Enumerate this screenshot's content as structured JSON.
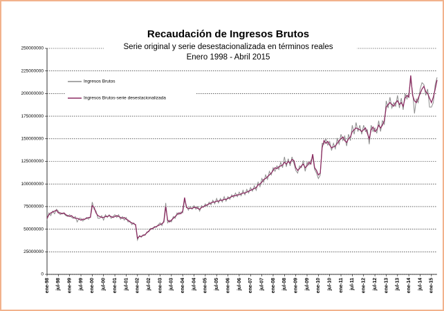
{
  "chart_data": {
    "type": "line",
    "title": "Recaudación de Ingresos Brutos",
    "subtitle": [
      "Serie original y serie desestacionalizada en términos reales",
      "Enero 1998 - Abril 2015"
    ],
    "categories": [
      "ene-98",
      null,
      null,
      null,
      null,
      null,
      "jul-98",
      null,
      null,
      null,
      null,
      null,
      "ene-99",
      null,
      null,
      null,
      null,
      null,
      "jul-99",
      null,
      null,
      null,
      null,
      null,
      "ene-00",
      null,
      null,
      null,
      null,
      null,
      "jul-00",
      null,
      null,
      null,
      null,
      null,
      "ene-01",
      null,
      null,
      null,
      null,
      null,
      "jul-01",
      null,
      null,
      null,
      null,
      null,
      "ene-02",
      null,
      null,
      null,
      null,
      null,
      "jul-02",
      null,
      null,
      null,
      null,
      null,
      "ene-03",
      null,
      null,
      null,
      null,
      null,
      "jul-03",
      null,
      null,
      null,
      null,
      null,
      "ene-04",
      null,
      null,
      null,
      null,
      null,
      "jul-04",
      null,
      null,
      null,
      null,
      null,
      "ene-05",
      null,
      null,
      null,
      null,
      null,
      "jul-05",
      null,
      null,
      null,
      null,
      null,
      "ene-06",
      null,
      null,
      null,
      null,
      null,
      "jul-06",
      null,
      null,
      null,
      null,
      null,
      "ene-07",
      null,
      null,
      null,
      null,
      null,
      "jul-07",
      null,
      null,
      null,
      null,
      null,
      "ene-08",
      null,
      null,
      null,
      null,
      null,
      "jul-08",
      null,
      null,
      null,
      null,
      null,
      "ene-09",
      null,
      null,
      null,
      null,
      null,
      "jul-09",
      null,
      null,
      null,
      null,
      null,
      "ene-10",
      null,
      null,
      null,
      null,
      null,
      "jul-10",
      null,
      null,
      null,
      null,
      null,
      "ene-11",
      null,
      null,
      null,
      null,
      null,
      "jul-11",
      null,
      null,
      null,
      null,
      null,
      "ene-12",
      null,
      null,
      null,
      null,
      null,
      "jul-12",
      null,
      null,
      null,
      null,
      null,
      "ene-13",
      null,
      null,
      null,
      null,
      null,
      "jul-13",
      null,
      null,
      null,
      null,
      null,
      "ene-14",
      null,
      null,
      null,
      null,
      null,
      "jul-14",
      null,
      null,
      null,
      null,
      null,
      "ene-15",
      null,
      null,
      null
    ],
    "series": [
      {
        "name": "Ingresos Brutos",
        "color": "#8c8c8c",
        "values": [
          60000000.0,
          68000000.0,
          65000000.0,
          70000000.0,
          67000000.0,
          72000000.0,
          70000000.0,
          66000000.0,
          68000000.0,
          67000000.0,
          65000000.0,
          64000000.0,
          66000000.0,
          63000000.0,
          62000000.0,
          64000000.0,
          58000000.0,
          62000000.0,
          62000000.0,
          59000000.0,
          61000000.0,
          63000000.0,
          61000000.0,
          64000000.0,
          80000000.0,
          72000000.0,
          70000000.0,
          62000000.0,
          62000000.0,
          65000000.0,
          60000000.0,
          66000000.0,
          63000000.0,
          66000000.0,
          62000000.0,
          64000000.0,
          66000000.0,
          63000000.0,
          66000000.0,
          61000000.0,
          64000000.0,
          60000000.0,
          63000000.0,
          58000000.0,
          59000000.0,
          55000000.0,
          57000000.0,
          54000000.0,
          38000000.0,
          43000000.0,
          41000000.0,
          44000000.0,
          43000000.0,
          47000000.0,
          47000000.0,
          51000000.0,
          50000000.0,
          53000000.0,
          52000000.0,
          55000000.0,
          57000000.0,
          54000000.0,
          60000000.0,
          79000000.0,
          57000000.0,
          60000000.0,
          58000000.0,
          64000000.0,
          62000000.0,
          68000000.0,
          66000000.0,
          69000000.0,
          68000000.0,
          82000000.0,
          76000000.0,
          71000000.0,
          75000000.0,
          72000000.0,
          76000000.0,
          72000000.0,
          75000000.0,
          70000000.0,
          76000000.0,
          74000000.0,
          78000000.0,
          75000000.0,
          80000000.0,
          77000000.0,
          82000000.0,
          78000000.0,
          84000000.0,
          79000000.0,
          84000000.0,
          80000000.0,
          86000000.0,
          81000000.0,
          86000000.0,
          83000000.0,
          88000000.0,
          85000000.0,
          90000000.0,
          86000000.0,
          91000000.0,
          87000000.0,
          93000000.0,
          88000000.0,
          94000000.0,
          90000000.0,
          96000000.0,
          92000000.0,
          98000000.0,
          93000000.0,
          102000000.0,
          97000000.0,
          106000000.0,
          102000000.0,
          110000000.0,
          105000000.0,
          114000000.0,
          110000000.0,
          118000000.0,
          114000000.0,
          120000000.0,
          116000000.0,
          124000000.0,
          118000000.0,
          130000000.0,
          119000000.0,
          128000000.0,
          120000000.0,
          130000000.0,
          123000000.0,
          115000000.0,
          112000000.0,
          120000000.0,
          118000000.0,
          126000000.0,
          114000000.0,
          124000000.0,
          121000000.0,
          126000000.0,
          130000000.0,
          116000000.0,
          112000000.0,
          106000000.0,
          110000000.0,
          145000000.0,
          144000000.0,
          150000000.0,
          143000000.0,
          147000000.0,
          137000000.0,
          145000000.0,
          139000000.0,
          150000000.0,
          144000000.0,
          155000000.0,
          148000000.0,
          153000000.0,
          142000000.0,
          155000000.0,
          148000000.0,
          165000000.0,
          155000000.0,
          168000000.0,
          158000000.0,
          165000000.0,
          155000000.0,
          165000000.0,
          158000000.0,
          160000000.0,
          144000000.0,
          165000000.0,
          158000000.0,
          162000000.0,
          156000000.0,
          170000000.0,
          158000000.0,
          170000000.0,
          166000000.0,
          192000000.0,
          184000000.0,
          196000000.0,
          184000000.0,
          190000000.0,
          186000000.0,
          198000000.0,
          184000000.0,
          195000000.0,
          182000000.0,
          200000000.0,
          194000000.0,
          200000000.0,
          215000000.0,
          202000000.0,
          178000000.0,
          194000000.0,
          190000000.0,
          205000000.0,
          212000000.0,
          210000000.0,
          198000000.0,
          205000000.0,
          185000000.0,
          185000000.0,
          190000000.0,
          210000000.0,
          218000000.0
        ]
      },
      {
        "name": "Ingresos Brutos-serie  desestacionalizada",
        "color": "#8b2c62",
        "values": [
          62000000.0,
          66000000.0,
          68000000.0,
          69000000.0,
          70000000.0,
          71000000.0,
          68000000.0,
          68000000.0,
          67000000.0,
          68000000.0,
          66000000.0,
          65000000.0,
          64000000.0,
          65000000.0,
          63000000.0,
          62000000.0,
          62000000.0,
          61000000.0,
          60000000.0,
          61000000.0,
          61000000.0,
          62000000.0,
          63000000.0,
          63000000.0,
          76000000.0,
          74000000.0,
          68000000.0,
          65000000.0,
          64000000.0,
          63000000.0,
          63000000.0,
          64000000.0,
          64000000.0,
          65000000.0,
          64000000.0,
          63000000.0,
          64000000.0,
          65000000.0,
          64000000.0,
          63000000.0,
          62000000.0,
          63000000.0,
          61000000.0,
          60000000.0,
          58000000.0,
          57000000.0,
          56000000.0,
          55000000.0,
          40000000.0,
          42000000.0,
          42000000.0,
          43000000.0,
          44000000.0,
          46000000.0,
          48000000.0,
          50000000.0,
          51000000.0,
          52000000.0,
          53000000.0,
          54000000.0,
          55000000.0,
          56000000.0,
          58000000.0,
          75000000.0,
          60000000.0,
          58000000.0,
          60000000.0,
          62000000.0,
          64000000.0,
          66000000.0,
          68000000.0,
          67000000.0,
          70000000.0,
          85000000.0,
          74000000.0,
          73000000.0,
          73000000.0,
          73000000.0,
          74000000.0,
          74000000.0,
          73000000.0,
          72000000.0,
          74000000.0,
          75000000.0,
          76000000.0,
          77000000.0,
          78000000.0,
          79000000.0,
          80000000.0,
          80000000.0,
          81000000.0,
          81000000.0,
          82000000.0,
          82000000.0,
          83000000.0,
          83000000.0,
          84000000.0,
          85000000.0,
          86000000.0,
          87000000.0,
          87000000.0,
          88000000.0,
          88000000.0,
          89000000.0,
          90000000.0,
          90000000.0,
          91000000.0,
          92000000.0,
          93000000.0,
          94000000.0,
          95000000.0,
          96000000.0,
          99000000.0,
          100000000.0,
          102000000.0,
          105000000.0,
          106000000.0,
          108000000.0,
          110000000.0,
          112000000.0,
          115000000.0,
          118000000.0,
          117000000.0,
          119000000.0,
          120000000.0,
          121000000.0,
          124000000.0,
          122000000.0,
          125000000.0,
          123000000.0,
          127000000.0,
          126000000.0,
          118000000.0,
          115000000.0,
          117000000.0,
          120000000.0,
          122000000.0,
          118000000.0,
          120000000.0,
          124000000.0,
          122000000.0,
          133000000.0,
          118000000.0,
          115000000.0,
          110000000.0,
          112000000.0,
          140000000.0,
          148000000.0,
          145000000.0,
          147000000.0,
          143000000.0,
          140000000.0,
          141000000.0,
          142000000.0,
          145000000.0,
          148000000.0,
          150000000.0,
          152000000.0,
          148000000.0,
          146000000.0,
          150000000.0,
          152000000.0,
          158000000.0,
          160000000.0,
          162000000.0,
          161000000.0,
          160000000.0,
          158000000.0,
          160000000.0,
          162000000.0,
          156000000.0,
          150000000.0,
          160000000.0,
          163000000.0,
          158000000.0,
          160000000.0,
          165000000.0,
          162000000.0,
          165000000.0,
          170000000.0,
          185000000.0,
          188000000.0,
          190000000.0,
          188000000.0,
          186000000.0,
          190000000.0,
          192000000.0,
          188000000.0,
          190000000.0,
          186000000.0,
          195000000.0,
          198000000.0,
          196000000.0,
          220000000.0,
          198000000.0,
          192000000.0,
          190000000.0,
          195000000.0,
          200000000.0,
          205000000.0,
          208000000.0,
          202000000.0,
          200000000.0,
          195000000.0,
          190000000.0,
          196000000.0,
          205000000.0,
          215000000.0
        ]
      }
    ],
    "ylim": [
      0,
      250000000
    ],
    "yticks": [
      0,
      25000000,
      50000000,
      75000000,
      100000000,
      125000000,
      150000000,
      175000000,
      200000000,
      225000000,
      250000000
    ],
    "grid": true,
    "legend": "upper left"
  }
}
